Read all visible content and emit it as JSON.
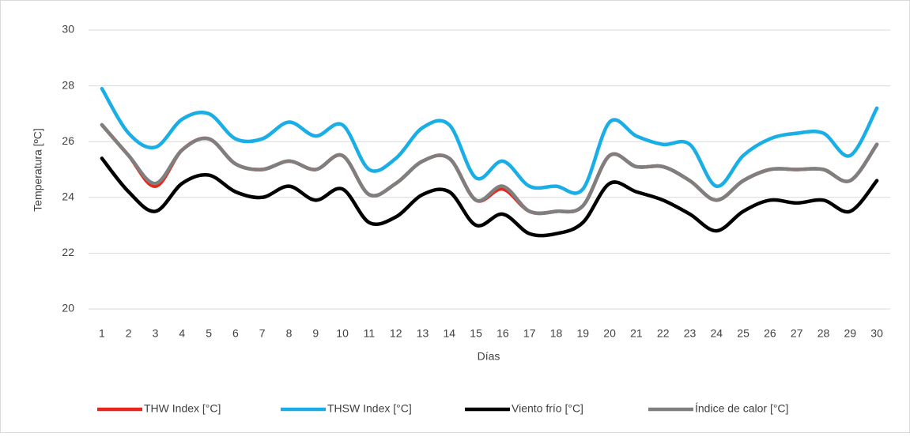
{
  "chart_data": {
    "type": "line",
    "x_label": "Días",
    "y_label": "Temperatura  [ºC]",
    "categories": [
      "1",
      "2",
      "3",
      "4",
      "5",
      "6",
      "7",
      "8",
      "9",
      "10",
      "11",
      "12",
      "13",
      "14",
      "15",
      "16",
      "17",
      "18",
      "19",
      "20",
      "21",
      "22",
      "23",
      "24",
      "25",
      "26",
      "27",
      "28",
      "29",
      "30"
    ],
    "ylim": [
      20,
      30
    ],
    "yticks": [
      20,
      22,
      24,
      26,
      28,
      30
    ],
    "grid": true,
    "legend": "bottom",
    "series": [
      {
        "name": "THW Index [°C]",
        "color": "#e8261c",
        "values": [
          26.6,
          25.5,
          24.4,
          25.7,
          26.1,
          25.2,
          25.0,
          25.3,
          25.0,
          25.5,
          24.1,
          24.5,
          25.3,
          25.4,
          23.9,
          24.3,
          23.5,
          23.5,
          23.7,
          25.5,
          25.1,
          25.1,
          24.6,
          23.9,
          24.6,
          25.0,
          25.0,
          25.0,
          24.6,
          25.9
        ]
      },
      {
        "name": "THSW Index [°C]",
        "color": "#1aaee6",
        "values": [
          27.9,
          26.3,
          25.8,
          26.8,
          27.0,
          26.1,
          26.1,
          26.7,
          26.2,
          26.6,
          25.0,
          25.4,
          26.5,
          26.6,
          24.7,
          25.3,
          24.4,
          24.4,
          24.3,
          26.7,
          26.2,
          25.9,
          25.9,
          24.4,
          25.5,
          26.1,
          26.3,
          26.3,
          25.5,
          27.2
        ]
      },
      {
        "name": "Viento frío [°C]",
        "color": "#000000",
        "values": [
          25.4,
          24.2,
          23.5,
          24.5,
          24.8,
          24.2,
          24.0,
          24.4,
          23.9,
          24.3,
          23.1,
          23.3,
          24.1,
          24.2,
          23.0,
          23.4,
          22.7,
          22.7,
          23.1,
          24.5,
          24.2,
          23.9,
          23.4,
          22.8,
          23.5,
          23.9,
          23.8,
          23.9,
          23.5,
          24.6
        ]
      },
      {
        "name": "Índice de calor  [°C]",
        "color": "#7f7f7f",
        "values": [
          26.6,
          25.5,
          24.5,
          25.7,
          26.1,
          25.2,
          25.0,
          25.3,
          25.0,
          25.5,
          24.1,
          24.5,
          25.3,
          25.4,
          23.9,
          24.4,
          23.5,
          23.5,
          23.7,
          25.5,
          25.1,
          25.1,
          24.6,
          23.9,
          24.6,
          25.0,
          25.0,
          25.0,
          24.6,
          25.9
        ]
      }
    ]
  }
}
